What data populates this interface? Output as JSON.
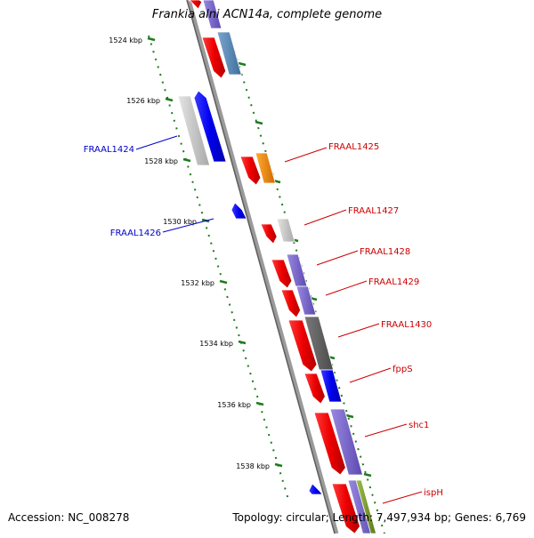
{
  "title": "Frankia alni ACN14a, complete genome",
  "footer": {
    "accession": "Accession: NC_008278",
    "summary": "Topology: circular; Length: 7,497,934 bp; Genes: 6,769"
  },
  "colors": {
    "backbone": "#8c8c8c",
    "ruler": "#1f7a1f",
    "forward_label": "#cc0000",
    "reverse_label": "#0000cc"
  },
  "ruler_ticks": [
    "1524 kbp",
    "1526 kbp",
    "1528 kbp",
    "1530 kbp",
    "1532 kbp",
    "1534 kbp",
    "1536 kbp",
    "1538 kbp"
  ],
  "gene_labels": {
    "reverse": [
      "FRAAL1424",
      "FRAAL1426"
    ],
    "forward": [
      "FRAAL1425",
      "FRAAL1427",
      "FRAAL1428",
      "FRAAL1429",
      "FRAAL1430",
      "fppS",
      "shc1",
      "ispH"
    ]
  }
}
